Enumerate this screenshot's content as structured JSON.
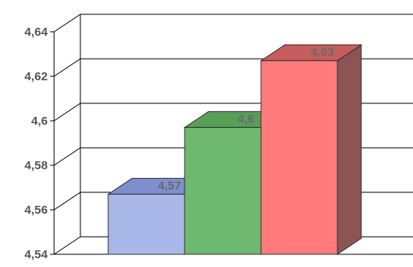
{
  "chart_data": {
    "type": "bar",
    "style": "3d",
    "categories": [
      "",
      "",
      ""
    ],
    "values": [
      4.567,
      4.597,
      4.627
    ],
    "data_labels": [
      "4,57",
      "4,6",
      "4,63"
    ],
    "y_ticks": [
      4.54,
      4.56,
      4.58,
      4.6,
      4.62,
      4.64
    ],
    "y_tick_labels": [
      "4,54",
      "4,56",
      "4,58",
      "4,6",
      "4,62",
      "4,64"
    ],
    "ylim": [
      4.54,
      4.64
    ],
    "grid": true,
    "legend": "none",
    "colors": {
      "bars_front": [
        "#a9b8e8",
        "#6fb86f",
        "#ff7b7b"
      ],
      "bars_top": [
        "#7d8fcf",
        "#579e57",
        "#c75c5c"
      ],
      "bars_side": [
        "#6e7fb8",
        "#4e8a4e",
        "#8c5454"
      ],
      "gridline": "#000000",
      "axis": "#000000"
    }
  }
}
